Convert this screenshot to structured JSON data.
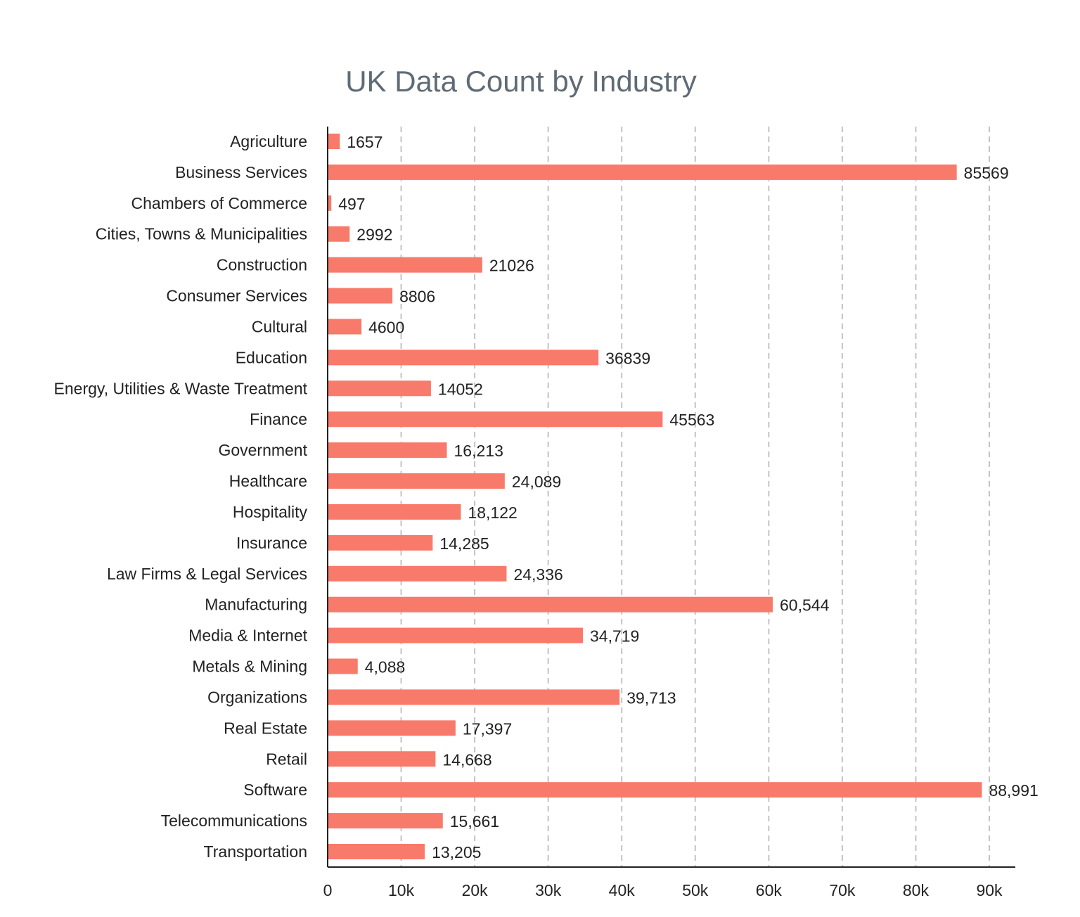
{
  "chart_data": {
    "type": "bar",
    "orientation": "horizontal",
    "title": "UK Data Count by Industry",
    "xlabel": "",
    "ylabel": "",
    "xlim": [
      0,
      93500
    ],
    "x_ticks": [
      0,
      10000,
      20000,
      30000,
      40000,
      50000,
      60000,
      70000,
      80000,
      90000
    ],
    "x_tick_labels": [
      "0",
      "10k",
      "20k",
      "30k",
      "40k",
      "50k",
      "60k",
      "70k",
      "80k",
      "90k"
    ],
    "grid": "vertical dashed",
    "bar_color": "#f87a6a",
    "categories": [
      "Agriculture",
      "Business Services",
      "Chambers of Commerce",
      "Cities, Towns & Municipalities",
      "Construction",
      "Consumer Services",
      "Cultural",
      "Education",
      "Energy, Utilities & Waste Treatment",
      "Finance",
      "Government",
      "Healthcare",
      "Hospitality",
      "Insurance",
      "Law Firms & Legal Services",
      "Manufacturing",
      "Media & Internet",
      "Metals & Mining",
      "Organizations",
      "Real Estate",
      "Retail",
      "Software",
      "Telecommunications",
      "Transportation"
    ],
    "values": [
      1657,
      85569,
      497,
      2992,
      21026,
      8806,
      4600,
      36839,
      14052,
      45563,
      16213,
      24089,
      18122,
      14285,
      24336,
      60544,
      34719,
      4088,
      39713,
      17397,
      14668,
      88991,
      15661,
      13205
    ],
    "data_labels": [
      "1657",
      "85569",
      "497",
      "2992",
      "21026",
      "8806",
      "4600",
      "36839",
      "14052",
      "45563",
      "16,213",
      "24,089",
      "18,122",
      "14,285",
      "24,336",
      "60,544",
      "34,719",
      "4,088",
      "39,713",
      "17,397",
      "14,668",
      "88,991",
      "15,661",
      "13,205"
    ]
  }
}
